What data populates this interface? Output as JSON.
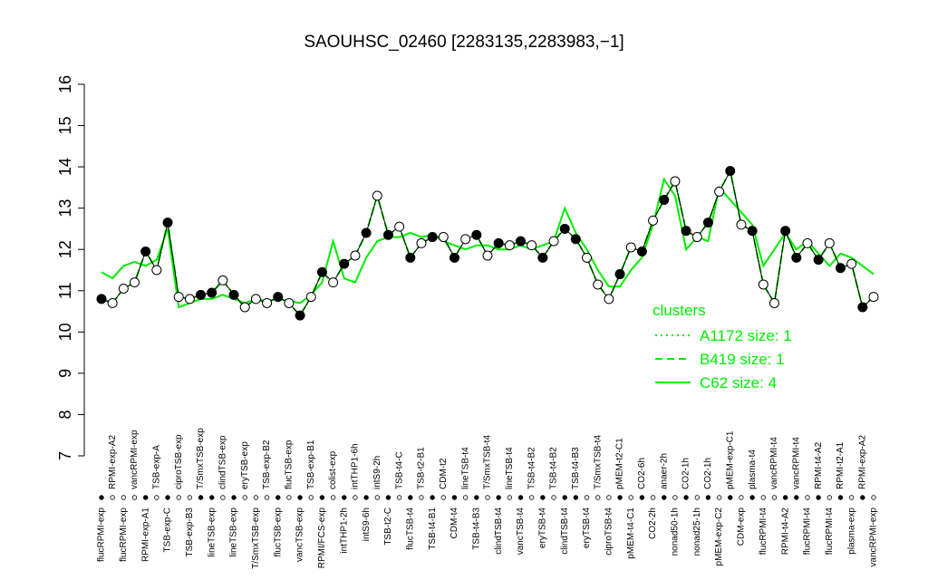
{
  "chart_data": {
    "type": "line",
    "title": "SAOUHSC_02460 [2283135,2283983,−1]",
    "categories": [
      "flucRPMI-exp",
      "RPMI-exp-A2",
      "flucRPMI-exp",
      "vancRPMI-exp",
      "RPMI-exp-A1",
      "TSB-exp-A",
      "TSB-exp-C",
      "ciproTSB-exp",
      "TSB-exp-B3",
      "T/SmxTSB-exp",
      "lineTSB-exp",
      "clindTSB-exp",
      "lineTSB-exp",
      "eryTSB-exp",
      "T/SmxTSB-exp",
      "TSB-exp-B2",
      "flucTSB-exp",
      "flucTSB-exp",
      "vancTSB-exp",
      "TSB-exp-B1",
      "RPMI/FCS-exp",
      "colist-exp",
      "intTHP1-2h",
      "intTHP1-6h",
      "intS9-6h",
      "intS9-2h",
      "TSB-t2-C",
      "TSB-t4-C",
      "flucTSB-t4",
      "TSB-t2-B1",
      "TSB-t4-B1",
      "CDM-t2",
      "CDM-t4",
      "lineTSB-t4",
      "TSB-t4-B3",
      "T/SmxTSB-t4",
      "clindTSB-t4",
      "lineTSB-t4",
      "vancTSB-t4",
      "TSB-t4-B2",
      "eryTSB-t4",
      "TSB-t4-B2",
      "clindTSB-t4",
      "TSB-t4-B3",
      "eryTSB-t4",
      "T/SmxTSB-t4",
      "ciproTSB-t4",
      "pMEM-t2-C1",
      "pMEM-t4-C1",
      "CO2-6h",
      "CO2-2h",
      "anaer-2h",
      "nonad50-1h",
      "CO2-1h",
      "nonad25-1h",
      "CO2-1h",
      "pMEM-exp-C2",
      "pMEM-exp-C1",
      "CDM-exp",
      "plasma-t4",
      "flucRPMI-t4",
      "vancRPMI-t4",
      "RPMI-t4-A2",
      "vancRPMI-t4",
      "flucRPMI-t4",
      "RPMI-t4-A2",
      "flucRPMI-t4",
      "RPMI-t2-A1",
      "plasma-exp",
      "RPMI-exp-A2",
      "vancRPMI-exp"
    ],
    "values": [
      10.8,
      10.7,
      11.05,
      11.2,
      11.95,
      11.5,
      12.65,
      10.85,
      10.8,
      10.9,
      10.95,
      11.25,
      10.9,
      10.6,
      10.8,
      10.7,
      10.85,
      10.7,
      10.4,
      10.85,
      11.45,
      11.2,
      11.65,
      11.85,
      12.4,
      13.3,
      12.35,
      12.55,
      11.8,
      12.15,
      12.3,
      12.3,
      11.8,
      12.25,
      12.35,
      11.85,
      12.15,
      12.1,
      12.2,
      12.1,
      11.8,
      12.2,
      12.5,
      12.25,
      11.8,
      11.15,
      10.8,
      11.4,
      12.05,
      11.95,
      12.7,
      13.2,
      13.65,
      12.45,
      12.3,
      12.65,
      13.4,
      13.9,
      12.6,
      12.45,
      11.15,
      10.7,
      12.45,
      11.8,
      12.15,
      11.75,
      12.15,
      11.55,
      11.65,
      10.6,
      10.85
    ],
    "marker_fills": [
      "black",
      "white",
      "white",
      "white",
      "black",
      "white",
      "black",
      "white",
      "white",
      "black",
      "black",
      "white",
      "black",
      "white",
      "white",
      "white",
      "black",
      "white",
      "black",
      "white",
      "black",
      "white",
      "black",
      "white",
      "black",
      "white",
      "black",
      "white",
      "black",
      "white",
      "black",
      "white",
      "black",
      "white",
      "black",
      "white",
      "black",
      "white",
      "black",
      "white",
      "black",
      "white",
      "black",
      "black",
      "white",
      "white",
      "white",
      "black",
      "white",
      "black",
      "white",
      "black",
      "white",
      "black",
      "white",
      "black",
      "white",
      "black",
      "white",
      "black",
      "white",
      "white",
      "black",
      "black",
      "white",
      "black",
      "white",
      "black",
      "white",
      "black",
      "white"
    ],
    "legend_title": "clusters",
    "series": [
      {
        "name": "A1172 size: 1",
        "color": "#00ee00",
        "dash": "dotted",
        "values": [
          10.8,
          10.7,
          11.05,
          11.2,
          11.95,
          11.5,
          12.65,
          10.85,
          10.8,
          10.9,
          10.95,
          11.25,
          10.9,
          10.6,
          10.8,
          10.7,
          10.85,
          10.7,
          10.4,
          10.85,
          11.45,
          11.2,
          11.65,
          11.85,
          12.4,
          13.3,
          12.35,
          12.55,
          11.8,
          12.15,
          12.3,
          12.3,
          11.8,
          12.25,
          12.35,
          11.85,
          12.15,
          12.1,
          12.2,
          12.1,
          11.8,
          12.2,
          12.5,
          12.25,
          11.8,
          11.15,
          10.8,
          11.4,
          12.05,
          11.95,
          12.7,
          13.2,
          13.65,
          12.45,
          12.3,
          12.65,
          13.4,
          13.9,
          12.6,
          12.45,
          11.15,
          10.7,
          12.45,
          11.8,
          12.15,
          11.75,
          12.15,
          11.55,
          11.65,
          10.6,
          10.85
        ]
      },
      {
        "name": "B419 size: 1",
        "color": "#00ee00",
        "dash": "dashed",
        "values": [
          10.8,
          10.7,
          11.05,
          11.2,
          11.95,
          11.5,
          12.65,
          10.85,
          10.8,
          10.9,
          10.95,
          11.25,
          10.9,
          10.6,
          10.8,
          10.7,
          10.85,
          10.7,
          10.4,
          10.85,
          11.45,
          11.2,
          11.65,
          11.85,
          12.4,
          13.3,
          12.35,
          12.55,
          11.8,
          12.15,
          12.3,
          12.3,
          11.8,
          12.25,
          12.35,
          11.85,
          12.15,
          12.1,
          12.2,
          12.1,
          11.8,
          12.2,
          12.5,
          12.25,
          11.8,
          11.15,
          10.8,
          11.4,
          12.05,
          11.95,
          12.7,
          13.2,
          13.65,
          12.45,
          12.3,
          12.65,
          13.4,
          13.9,
          12.6,
          12.45,
          11.15,
          10.7,
          12.45,
          11.8,
          12.15,
          11.75,
          12.15,
          11.55,
          11.65,
          10.6,
          10.85
        ]
      },
      {
        "name": "C62 size: 4",
        "color": "#00ee00",
        "dash": "solid",
        "values": [
          11.45,
          11.3,
          11.6,
          11.7,
          11.6,
          11.75,
          12.5,
          10.6,
          10.7,
          10.8,
          10.8,
          10.9,
          10.8,
          10.7,
          10.8,
          10.75,
          10.8,
          10.75,
          10.7,
          10.9,
          11.2,
          12.2,
          11.3,
          11.2,
          11.8,
          12.2,
          12.3,
          12.3,
          12.4,
          12.3,
          12.35,
          12.2,
          12.1,
          12.0,
          12.1,
          12.1,
          12.0,
          12.0,
          12.1,
          12.0,
          12.1,
          12.2,
          13.0,
          12.4,
          12.0,
          11.5,
          11.1,
          11.1,
          11.5,
          11.8,
          12.6,
          13.7,
          13.3,
          12.0,
          12.3,
          12.2,
          13.5,
          13.2,
          12.9,
          12.6,
          11.6,
          12.0,
          12.4,
          12.0,
          12.2,
          11.9,
          11.6,
          11.9,
          11.8,
          11.6,
          11.4
        ]
      }
    ],
    "ylim": [
      7,
      16
    ],
    "yticks": [
      7,
      8,
      9,
      10,
      11,
      12,
      13,
      14,
      15,
      16
    ]
  }
}
